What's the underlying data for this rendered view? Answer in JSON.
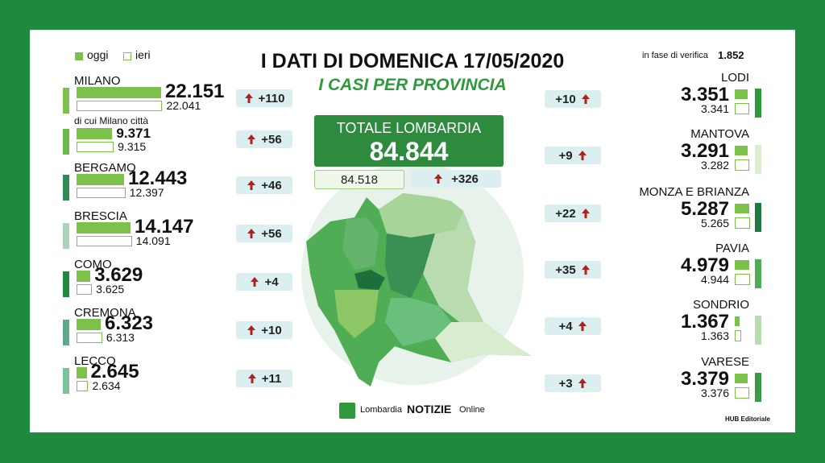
{
  "header": {
    "legend_today": "oggi",
    "legend_yesterday": "ieri",
    "title": "I DATI DI DOMENICA 17/05/2020",
    "subtitle": "I CASI PER PROVINCIA",
    "verification_label": "in fase di verifica",
    "verification_value": "1.852"
  },
  "total": {
    "label": "TOTALE LOMBARDIA",
    "value": "84.844",
    "yesterday": "84.518",
    "delta": "+326"
  },
  "left_provinces": [
    {
      "name": "MILANO",
      "today": "22.151",
      "yesterday": "22.041",
      "delta": "+110"
    },
    {
      "name": "di cui Milano città",
      "today": "9.371",
      "yesterday": "9.315",
      "delta": "+56"
    },
    {
      "name": "BERGAMO",
      "today": "12.443",
      "yesterday": "12.397",
      "delta": "+46"
    },
    {
      "name": "BRESCIA",
      "today": "14.147",
      "yesterday": "14.091",
      "delta": "+56"
    },
    {
      "name": "COMO",
      "today": "3.629",
      "yesterday": "3.625",
      "delta": "+4"
    },
    {
      "name": "CREMONA",
      "today": "6.323",
      "yesterday": "6.313",
      "delta": "+10"
    },
    {
      "name": "LECCO",
      "today": "2.645",
      "yesterday": "2.634",
      "delta": "+11"
    }
  ],
  "right_provinces": [
    {
      "name": "LODI",
      "today": "3.351",
      "yesterday": "3.341",
      "delta": "+10"
    },
    {
      "name": "MANTOVA",
      "today": "3.291",
      "yesterday": "3.282",
      "delta": "+9"
    },
    {
      "name": "MONZA E BRIANZA",
      "today": "5.287",
      "yesterday": "5.265",
      "delta": "+22"
    },
    {
      "name": "PAVIA",
      "today": "4.979",
      "yesterday": "4.944",
      "delta": "+35"
    },
    {
      "name": "SONDRIO",
      "today": "1.367",
      "yesterday": "1.363",
      "delta": "+4"
    },
    {
      "name": "VARESE",
      "today": "3.379",
      "yesterday": "3.376",
      "delta": "+3"
    }
  ],
  "footer": {
    "logo_prefix": "Lombardia",
    "logo_main": "NOTIZIE",
    "logo_suffix": "Online",
    "credit": "HUB Editoriale"
  }
}
